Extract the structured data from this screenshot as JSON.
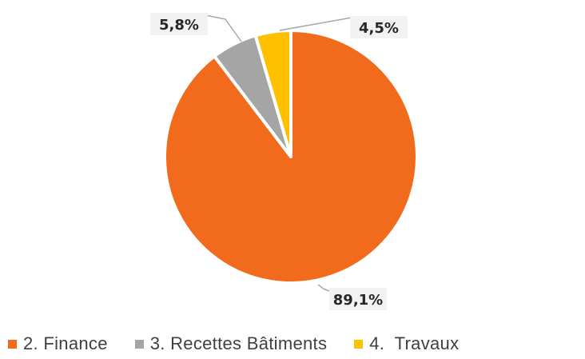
{
  "chart_data": {
    "type": "pie",
    "title": "",
    "categories": [
      "2. Finance",
      "3. Recettes Bâtiments",
      "4.  Travaux"
    ],
    "values": [
      89.1,
      5.8,
      4.5
    ],
    "data_labels": [
      "89,1%",
      "5,8%",
      "4,5%"
    ],
    "colors": [
      "#f26b1d",
      "#a5a5a5",
      "#ffc000"
    ],
    "start_angle_deg": 0,
    "direction": "counterclockwise",
    "legend_position": "bottom",
    "grid": false
  }
}
